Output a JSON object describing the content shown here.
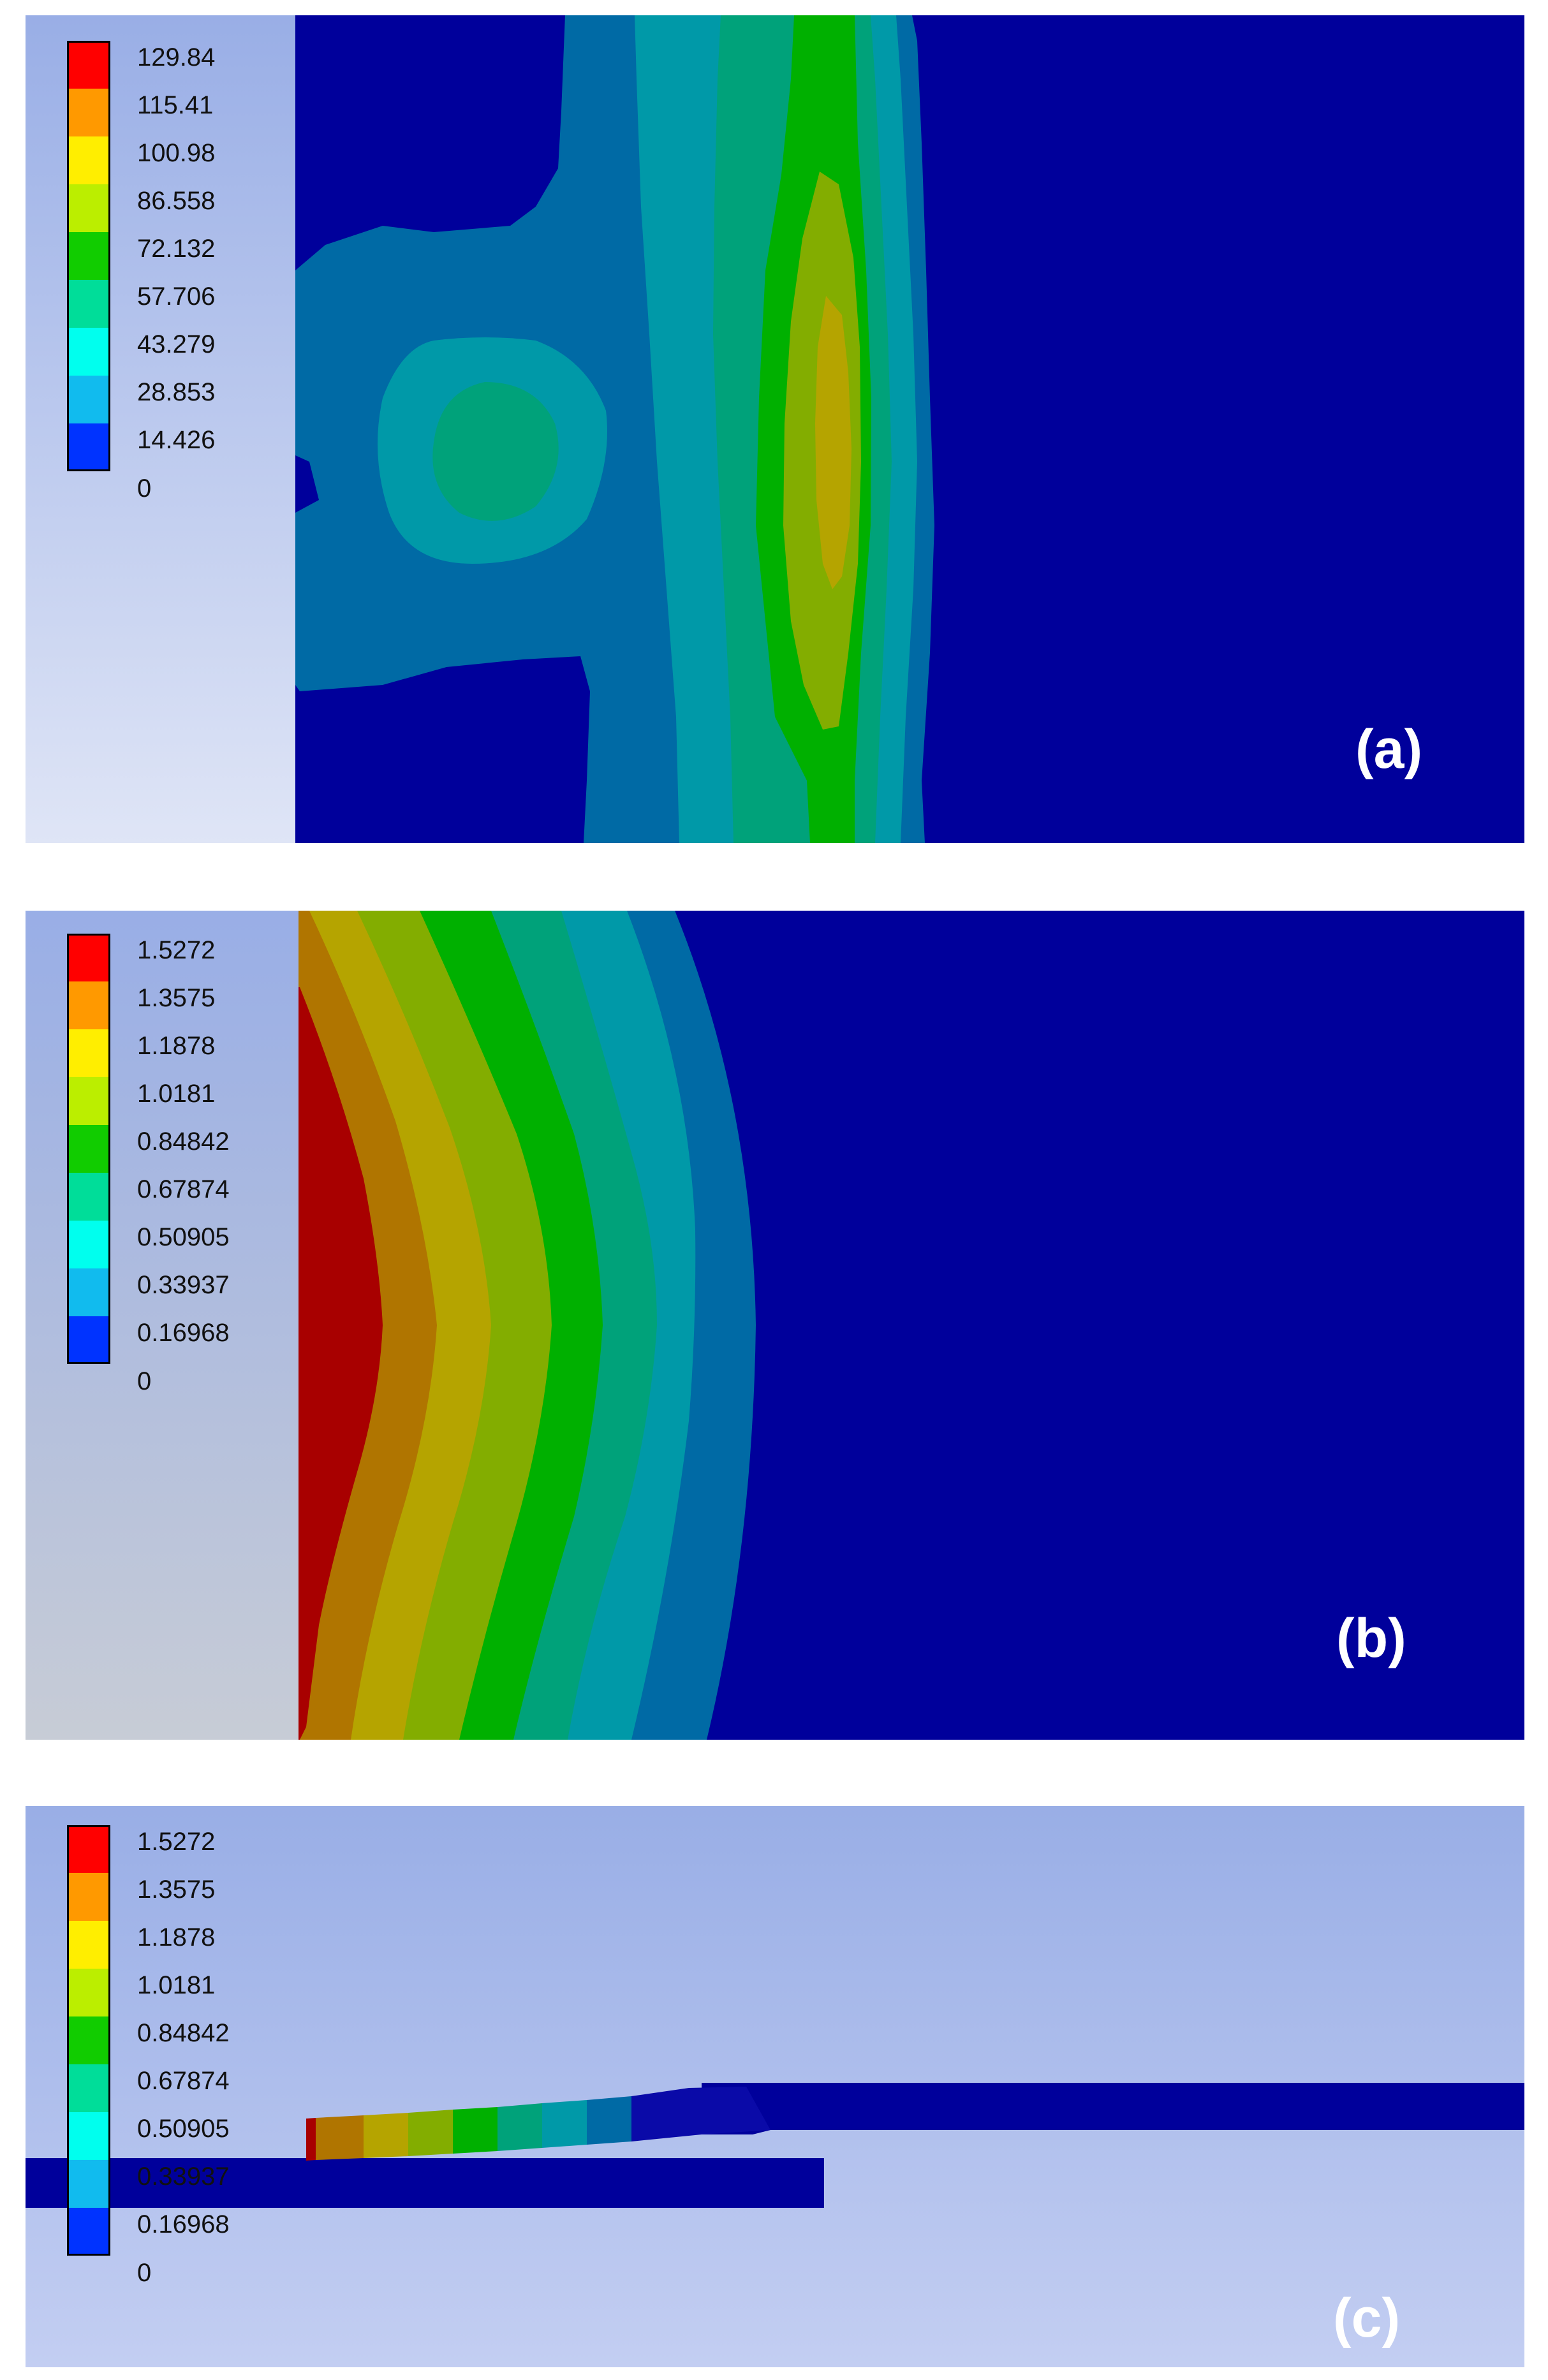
{
  "panels": [
    {
      "id": "a",
      "label": "(a)",
      "legend": [
        "129.84",
        "115.41",
        "100.98",
        "86.558",
        "72.132",
        "57.706",
        "43.279",
        "28.853",
        "14.426",
        "0"
      ]
    },
    {
      "id": "b",
      "label": "(b)",
      "legend": [
        "1.5272",
        "1.3575",
        "1.1878",
        "1.0181",
        "0.84842",
        "0.67874",
        "0.50905",
        "0.33937",
        "0.16968",
        "0"
      ]
    },
    {
      "id": "c",
      "label": "(c)",
      "legend": [
        "1.5272",
        "1.3575",
        "1.1878",
        "1.0181",
        "0.84842",
        "0.67874",
        "0.50905",
        "0.33937",
        "0.16968",
        "0"
      ]
    }
  ],
  "colors": {
    "scale": [
      "#ff0000",
      "#ff9900",
      "#ffee00",
      "#bbee00",
      "#11cc00",
      "#00dd99",
      "#00ffee",
      "#11bbee",
      "#0033ff"
    ],
    "field_deep_blue": "#00009b"
  }
}
